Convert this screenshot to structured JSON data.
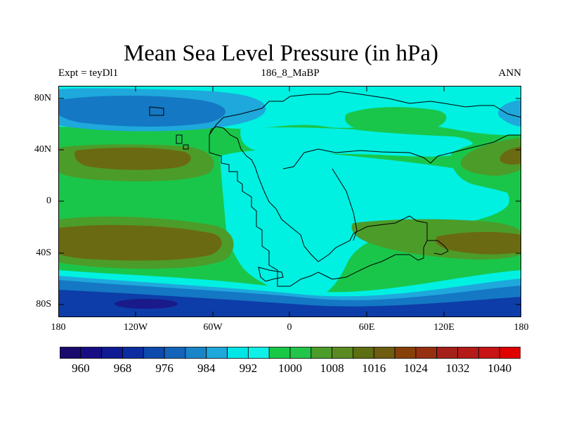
{
  "title": "Mean Sea Level Pressure (in hPa)",
  "left_label": "Expt = teyDl1",
  "center_label": "186_8_MaBP",
  "right_label": "ANN",
  "lat_labels": [
    "80N",
    "40N",
    "0",
    "40S",
    "80S"
  ],
  "lon_labels": [
    "180",
    "120W",
    "60W",
    "0",
    "60E",
    "120E",
    "180"
  ],
  "colorbar": {
    "colors": [
      "#1a0a6b",
      "#170d83",
      "#101a93",
      "#0c2ca1",
      "#0d4aae",
      "#1465b9",
      "#1985c8",
      "#20a8da",
      "#00e6e6",
      "#0ff0e6",
      "#17c846",
      "#22c44a",
      "#4c9c2a",
      "#5a8a22",
      "#5e6e12",
      "#6e5c10",
      "#86400a",
      "#963010",
      "#a42018",
      "#b41a18",
      "#c81414",
      "#e00000"
    ],
    "labels": [
      "960",
      "968",
      "976",
      "984",
      "992",
      "1000",
      "1008",
      "1016",
      "1024",
      "1032",
      "1040"
    ]
  },
  "chart_data": {
    "type": "contour-map",
    "variable": "Mean Sea Level Pressure",
    "units": "hPa",
    "projection": "cylindrical equidistant",
    "lon_range": [
      -180,
      180
    ],
    "lat_range": [
      -90,
      90
    ],
    "levels": [
      960,
      964,
      968,
      972,
      976,
      980,
      984,
      988,
      992,
      996,
      1000,
      1004,
      1008,
      1012,
      1016,
      1020,
      1024,
      1028,
      1032,
      1036,
      1040
    ],
    "colors": {
      "dark_blue": "#0d3da8",
      "mid_blue": "#1478c4",
      "light_blue": "#1ea8dc",
      "cyan": "#00f0e2",
      "green": "#19c64a",
      "olive_green": "#4c9c2a",
      "brown_olive": "#6a6a12",
      "land_line": "#000000"
    }
  }
}
